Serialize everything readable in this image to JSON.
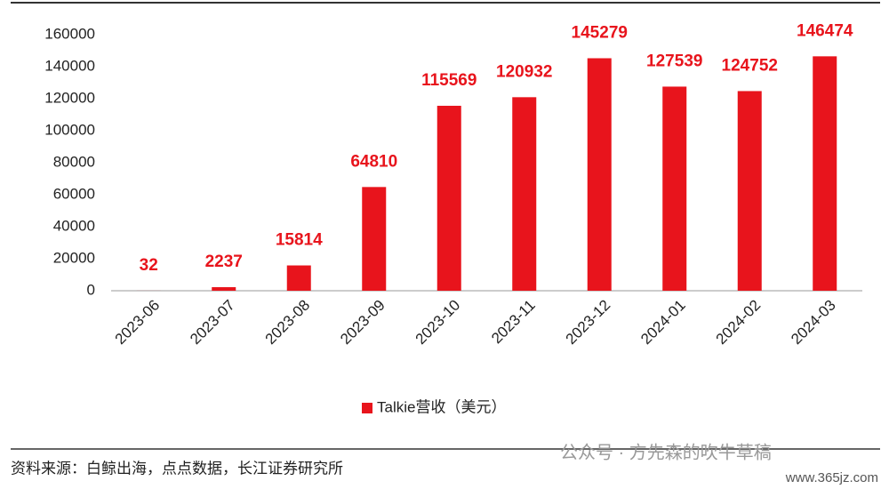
{
  "chart_data": {
    "type": "bar",
    "categories": [
      "2023-06",
      "2023-07",
      "2023-08",
      "2023-09",
      "2023-10",
      "2023-11",
      "2023-12",
      "2024-01",
      "2024-02",
      "2024-03"
    ],
    "series": [
      {
        "name": "Talkie营收（美元）",
        "color": "#e8141c",
        "values": [
          32,
          2237,
          15814,
          64810,
          115569,
          120932,
          145279,
          127539,
          124752,
          146474
        ]
      }
    ],
    "ylim": [
      0,
      160000
    ],
    "yticks": [
      0,
      20000,
      40000,
      60000,
      80000,
      100000,
      120000,
      140000,
      160000
    ],
    "grid": false,
    "legend": "bottom"
  },
  "source": "资料来源：白鲸出海，点点数据，长江证券研究所",
  "watermark": "公众号 · 方先森的吹牛草稿",
  "watermark_url": "www.365jz.com"
}
